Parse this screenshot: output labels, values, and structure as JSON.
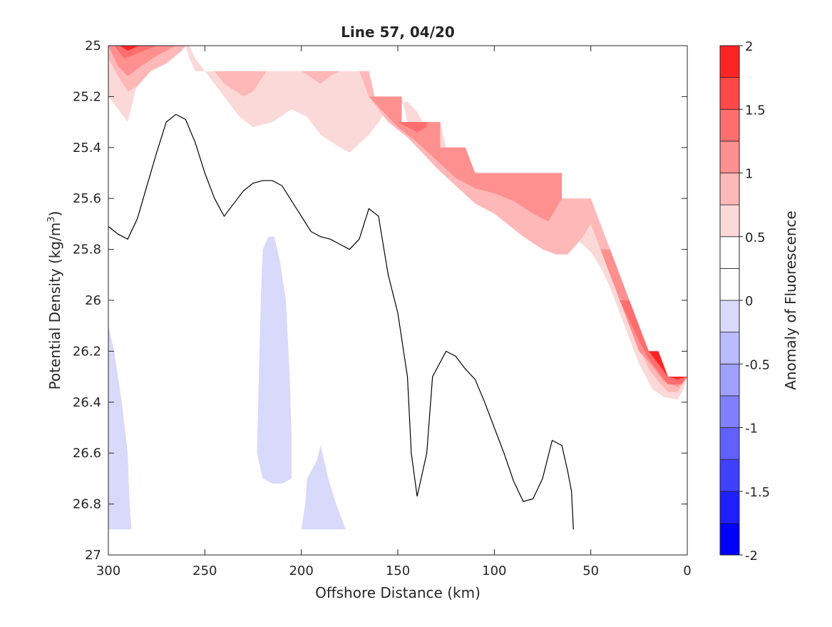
{
  "chart_data": {
    "type": "contour",
    "title": "Line 57, 04/20",
    "xlabel": "Offshore Distance (km)",
    "ylabel_main": "Potential Density (kg/m",
    "ylabel_sup": "3",
    "ylabel_close": ")",
    "xlim": [
      300,
      0
    ],
    "ylim": [
      25,
      27
    ],
    "x_reversed": true,
    "y_reversed": true,
    "xticks": [
      300,
      250,
      200,
      150,
      100,
      50,
      0
    ],
    "yticks": [
      25,
      25.2,
      25.4,
      25.6,
      25.8,
      26,
      26.2,
      26.4,
      26.6,
      26.8,
      27
    ],
    "ytick_labels": [
      "25",
      "25.2",
      "25.4",
      "25.6",
      "25.8",
      "26",
      "26.2",
      "26.4",
      "26.6",
      "26.8",
      "27"
    ],
    "grid": false,
    "colorbar": {
      "label": "Anomaly of Fluorescence",
      "limits": [
        -2,
        2
      ],
      "levels": [
        -2,
        -1.75,
        -1.5,
        -1.25,
        -1,
        -0.75,
        -0.5,
        -0.25,
        0,
        0.25,
        0.5,
        0.75,
        1,
        1.25,
        1.5,
        1.75,
        2
      ],
      "tick_values": [
        2,
        1.5,
        1,
        0.5,
        0,
        -0.5,
        -1,
        -1.5,
        -2
      ],
      "tick_labels": [
        "2",
        "1.5",
        "1",
        "0.5",
        "0",
        "-0.5",
        "-1",
        "-1.5",
        "-2"
      ],
      "colors": [
        "#0000ff",
        "#2020ff",
        "#4040ff",
        "#6060ff",
        "#8080ff",
        "#a0a0ff",
        "#bbbbff",
        "#d9d9fc",
        "#ffffff",
        "#ffffff",
        "#fcd9d9",
        "#ffb8b8",
        "#ff9090",
        "#ff6e6e",
        "#ff4848",
        "#ff2424",
        "#ff0000"
      ]
    },
    "filled_regions": [
      {
        "level": 0.25,
        "color": "#fcd9d9",
        "points": [
          [
            300,
            25
          ],
          [
            300,
            25.2
          ],
          [
            290,
            25.3
          ],
          [
            285,
            25.15
          ],
          [
            272,
            25.05
          ],
          [
            260,
            25
          ],
          [
            258,
            25
          ],
          [
            255,
            25.05
          ],
          [
            250,
            25.1
          ],
          [
            240,
            25.2
          ],
          [
            232,
            25.28
          ],
          [
            225,
            25.32
          ],
          [
            215,
            25.3
          ],
          [
            205,
            25.25
          ],
          [
            197,
            25.28
          ],
          [
            190,
            25.35
          ],
          [
            180,
            25.4
          ],
          [
            175,
            25.42
          ],
          [
            165,
            25.35
          ],
          [
            155,
            25.25
          ],
          [
            145,
            25.22
          ],
          [
            140,
            25.26
          ],
          [
            137,
            25.3
          ],
          [
            130,
            25.38
          ],
          [
            120,
            25.46
          ],
          [
            108,
            25.5
          ],
          [
            100,
            25.5
          ],
          [
            95,
            25.55
          ],
          [
            85,
            25.62
          ],
          [
            80,
            25.63
          ],
          [
            70,
            25.67
          ],
          [
            60,
            25.74
          ],
          [
            50,
            25.81
          ],
          [
            45,
            25.87
          ],
          [
            40,
            25.95
          ],
          [
            35,
            26.05
          ],
          [
            30,
            26.15
          ],
          [
            25,
            26.25
          ],
          [
            18,
            26.35
          ],
          [
            12,
            26.38
          ],
          [
            5,
            26.39
          ],
          [
            2,
            26.35
          ],
          [
            0,
            26.3
          ],
          [
            10,
            26.3
          ],
          [
            15,
            26.2
          ],
          [
            20,
            26.2
          ],
          [
            30,
            26.0
          ],
          [
            40,
            25.8
          ],
          [
            50,
            25.6
          ],
          [
            52,
            25.6
          ],
          [
            65,
            25.6
          ],
          [
            66,
            25.5
          ],
          [
            95,
            25.5
          ],
          [
            110,
            25.5
          ],
          [
            115,
            25.4
          ],
          [
            120,
            25.4
          ],
          [
            125,
            25.4
          ],
          [
            128,
            25.3
          ],
          [
            135,
            25.3
          ],
          [
            140,
            25.3
          ],
          [
            145,
            25.3
          ],
          [
            148,
            25.2
          ],
          [
            160,
            25.2
          ],
          [
            162,
            25.2
          ],
          [
            165,
            25.1
          ],
          [
            170,
            25.1
          ],
          [
            255,
            25.1
          ],
          [
            258,
            25.05
          ],
          [
            260,
            25
          ]
        ]
      },
      {
        "level": 0.5,
        "color": "#ffb8b8",
        "points": [
          [
            300,
            25
          ],
          [
            300,
            25.05
          ],
          [
            295,
            25.12
          ],
          [
            290,
            25.18
          ],
          [
            285,
            25.16
          ],
          [
            278,
            25.1
          ],
          [
            270,
            25.07
          ],
          [
            262,
            25.02
          ],
          [
            260,
            25
          ],
          [
            290,
            25
          ]
        ]
      },
      {
        "level": 0.5,
        "color": "#ffb8b8",
        "points": [
          [
            255,
            25.1
          ],
          [
            245,
            25.1
          ],
          [
            240,
            25.15
          ],
          [
            230,
            25.2
          ],
          [
            225,
            25.18
          ],
          [
            218,
            25.1
          ]
        ]
      },
      {
        "level": 0.5,
        "color": "#ffb8b8",
        "points": [
          [
            200,
            25.1
          ],
          [
            190,
            25.15
          ],
          [
            185,
            25.12
          ],
          [
            180,
            25.1
          ]
        ]
      },
      {
        "level": 0.5,
        "color": "#ffb8b8",
        "points": [
          [
            170,
            25.1
          ],
          [
            165,
            25.2
          ],
          [
            155,
            25.3
          ],
          [
            145,
            25.36
          ],
          [
            140,
            25.4
          ],
          [
            130,
            25.48
          ],
          [
            120,
            25.55
          ],
          [
            110,
            25.62
          ],
          [
            100,
            25.66
          ],
          [
            95,
            25.69
          ],
          [
            85,
            25.75
          ],
          [
            75,
            25.8
          ],
          [
            68,
            25.82
          ],
          [
            62,
            25.82
          ],
          [
            55,
            25.76
          ],
          [
            50,
            25.7
          ],
          [
            45,
            25.8
          ],
          [
            40,
            25.88
          ],
          [
            35,
            25.97
          ],
          [
            30,
            26.08
          ],
          [
            25,
            26.18
          ],
          [
            20,
            26.27
          ],
          [
            15,
            26.32
          ],
          [
            10,
            26.36
          ],
          [
            5,
            26.36
          ],
          [
            0,
            26.3
          ],
          [
            10,
            26.3
          ],
          [
            15,
            26.2
          ],
          [
            20,
            26.2
          ],
          [
            30,
            26.0
          ],
          [
            40,
            25.8
          ],
          [
            50,
            25.6
          ],
          [
            65,
            25.6
          ],
          [
            66,
            25.5
          ],
          [
            110,
            25.5
          ],
          [
            115,
            25.4
          ],
          [
            128,
            25.4
          ],
          [
            128,
            25.3
          ],
          [
            148,
            25.3
          ],
          [
            148,
            25.2
          ],
          [
            162,
            25.2
          ],
          [
            165,
            25.1
          ]
        ]
      },
      {
        "level": 0.75,
        "color": "#ff9090",
        "points": [
          [
            165,
            25.2
          ],
          [
            160,
            25.24
          ],
          [
            150,
            25.32
          ],
          [
            140,
            25.38
          ],
          [
            130,
            25.45
          ],
          [
            120,
            25.52
          ],
          [
            110,
            25.56
          ],
          [
            100,
            25.58
          ],
          [
            90,
            25.61
          ],
          [
            80,
            25.66
          ],
          [
            72,
            25.69
          ],
          [
            65,
            25.6
          ],
          [
            65,
            25.5
          ],
          [
            110,
            25.5
          ],
          [
            115,
            25.4
          ],
          [
            128,
            25.4
          ],
          [
            128,
            25.3
          ],
          [
            148,
            25.3
          ],
          [
            148,
            25.2
          ]
        ]
      },
      {
        "level": 0.75,
        "color": "#ff9090",
        "points": [
          [
            300,
            25
          ],
          [
            295,
            25.08
          ],
          [
            290,
            25.12
          ],
          [
            283,
            25.08
          ],
          [
            275,
            25.04
          ],
          [
            265,
            25
          ],
          [
            280,
            25
          ]
        ]
      },
      {
        "level": 0.75,
        "color": "#ff9090",
        "points": [
          [
            45,
            25.8
          ],
          [
            40,
            25.9
          ],
          [
            35,
            26.0
          ],
          [
            30,
            26.1
          ],
          [
            25,
            26.2
          ],
          [
            18,
            26.26
          ],
          [
            12,
            26.32
          ],
          [
            5,
            26.34
          ],
          [
            0,
            26.3
          ],
          [
            10,
            26.3
          ],
          [
            15,
            26.2
          ],
          [
            20,
            26.2
          ],
          [
            30,
            26.0
          ],
          [
            40,
            25.8
          ]
        ]
      },
      {
        "level": 1.25,
        "color": "#ff6e6e",
        "points": [
          [
            297,
            25
          ],
          [
            292,
            25.05
          ],
          [
            285,
            25.03
          ],
          [
            275,
            25
          ],
          [
            290,
            25
          ]
        ]
      },
      {
        "level": 1.25,
        "color": "#ff6e6e",
        "points": [
          [
            150,
            25.3
          ],
          [
            140,
            25.34
          ],
          [
            135,
            25.32
          ],
          [
            135,
            25.3
          ]
        ]
      },
      {
        "level": 1.25,
        "color": "#ff6e6e",
        "points": [
          [
            35,
            26.0
          ],
          [
            30,
            26.08
          ],
          [
            25,
            26.16
          ],
          [
            20,
            26.23
          ],
          [
            15,
            26.28
          ],
          [
            10,
            26.33
          ],
          [
            3,
            26.33
          ],
          [
            0,
            26.3
          ],
          [
            10,
            26.3
          ],
          [
            15,
            26.2
          ],
          [
            20,
            26.2
          ],
          [
            30,
            26.0
          ]
        ]
      },
      {
        "level": 1.75,
        "color": "#ff2424",
        "points": [
          [
            20,
            26.2
          ],
          [
            15,
            26.25
          ],
          [
            10,
            26.3
          ],
          [
            5,
            26.31
          ],
          [
            0,
            26.3
          ],
          [
            10,
            26.3
          ],
          [
            15,
            26.2
          ]
        ]
      },
      {
        "level": 1.75,
        "color": "#ff2424",
        "points": [
          [
            294,
            25
          ],
          [
            290,
            25.02
          ],
          [
            284,
            25
          ]
        ]
      },
      {
        "level": -0.5,
        "color": "#d9d9fc",
        "points": [
          [
            300,
            26.1
          ],
          [
            297,
            26.2
          ],
          [
            293,
            26.4
          ],
          [
            290,
            26.6
          ],
          [
            289,
            26.8
          ],
          [
            288,
            26.9
          ],
          [
            300,
            26.9
          ]
        ]
      },
      {
        "level": -0.5,
        "color": "#d9d9fc",
        "points": [
          [
            220,
            25.8
          ],
          [
            217,
            25.75
          ],
          [
            214,
            25.75
          ],
          [
            211,
            25.85
          ],
          [
            208,
            26.0
          ],
          [
            206,
            26.3
          ],
          [
            205,
            26.55
          ],
          [
            205,
            26.7
          ],
          [
            210,
            26.72
          ],
          [
            215,
            26.72
          ],
          [
            220,
            26.7
          ],
          [
            223,
            26.6
          ],
          [
            222,
            26.3
          ],
          [
            221,
            26.0
          ]
        ]
      },
      {
        "level": -0.5,
        "color": "#d9d9fc",
        "points": [
          [
            200,
            26.9
          ],
          [
            198,
            26.8
          ],
          [
            197,
            26.7
          ],
          [
            192,
            26.63
          ],
          [
            190,
            26.57
          ],
          [
            186,
            26.7
          ],
          [
            182,
            26.8
          ],
          [
            177,
            26.9
          ]
        ]
      }
    ],
    "zero_contour": [
      [
        300,
        25.71
      ],
      [
        295,
        25.74
      ],
      [
        290,
        25.76
      ],
      [
        285,
        25.68
      ],
      [
        280,
        25.55
      ],
      [
        275,
        25.42
      ],
      [
        270,
        25.3
      ],
      [
        265,
        25.27
      ],
      [
        260,
        25.29
      ],
      [
        255,
        25.38
      ],
      [
        250,
        25.5
      ],
      [
        245,
        25.6
      ],
      [
        240,
        25.67
      ],
      [
        235,
        25.62
      ],
      [
        230,
        25.57
      ],
      [
        225,
        25.54
      ],
      [
        220,
        25.53
      ],
      [
        215,
        25.53
      ],
      [
        210,
        25.55
      ],
      [
        205,
        25.61
      ],
      [
        200,
        25.67
      ],
      [
        195,
        25.73
      ],
      [
        190,
        25.75
      ],
      [
        185,
        25.76
      ],
      [
        180,
        25.78
      ],
      [
        175,
        25.8
      ],
      [
        170,
        25.76
      ],
      [
        165,
        25.64
      ],
      [
        160,
        25.67
      ],
      [
        155,
        25.9
      ],
      [
        150,
        26.05
      ],
      [
        145,
        26.3
      ],
      [
        143,
        26.6
      ],
      [
        140,
        26.77
      ],
      [
        135,
        26.6
      ],
      [
        133,
        26.4
      ],
      [
        132,
        26.3
      ],
      [
        125,
        26.2
      ],
      [
        120,
        26.22
      ],
      [
        115,
        26.27
      ],
      [
        110,
        26.31
      ],
      [
        105,
        26.4
      ],
      [
        100,
        26.5
      ],
      [
        95,
        26.6
      ],
      [
        90,
        26.71
      ],
      [
        85,
        26.79
      ],
      [
        80,
        26.78
      ],
      [
        75,
        26.7
      ],
      [
        70,
        26.55
      ],
      [
        65,
        26.57
      ],
      [
        62,
        26.67
      ],
      [
        60,
        26.75
      ],
      [
        59,
        26.9
      ]
    ]
  }
}
